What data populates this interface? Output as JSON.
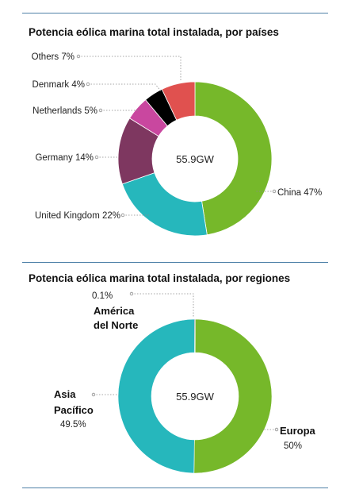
{
  "chart_data": [
    {
      "type": "pie",
      "title": "Potencia eólica marina total instalada, por países",
      "center_label": "55.9GW",
      "slices": [
        {
          "label": "China",
          "value": 47,
          "value_label": "47%",
          "color": "#76b82a"
        },
        {
          "label": "United Kingdom",
          "value": 22,
          "value_label": "22%",
          "color": "#26b7bc"
        },
        {
          "label": "Germany",
          "value": 14,
          "value_label": "14%",
          "color": "#7e3760"
        },
        {
          "label": "Netherlands",
          "value": 5,
          "value_label": "5%",
          "color": "#c9479f"
        },
        {
          "label": "Denmark",
          "value": 4,
          "value_label": "4%",
          "color": "#000000"
        },
        {
          "label": "Others",
          "value": 7,
          "value_label": "7%",
          "color": "#e0514f"
        }
      ]
    },
    {
      "type": "pie",
      "title": "Potencia eólica marina total instalada, por regiones",
      "center_label": "55.9GW",
      "slices": [
        {
          "label": "Europa",
          "value": 50,
          "value_label": "50%",
          "color": "#76b82a"
        },
        {
          "label": "Asia Pacífico",
          "value": 49.5,
          "value_label": "49.5%",
          "color": "#26b7bc"
        },
        {
          "label": "América del Norte",
          "value": 0.1,
          "value_label": "0.1%",
          "color": "#3a4a6b"
        }
      ]
    }
  ]
}
